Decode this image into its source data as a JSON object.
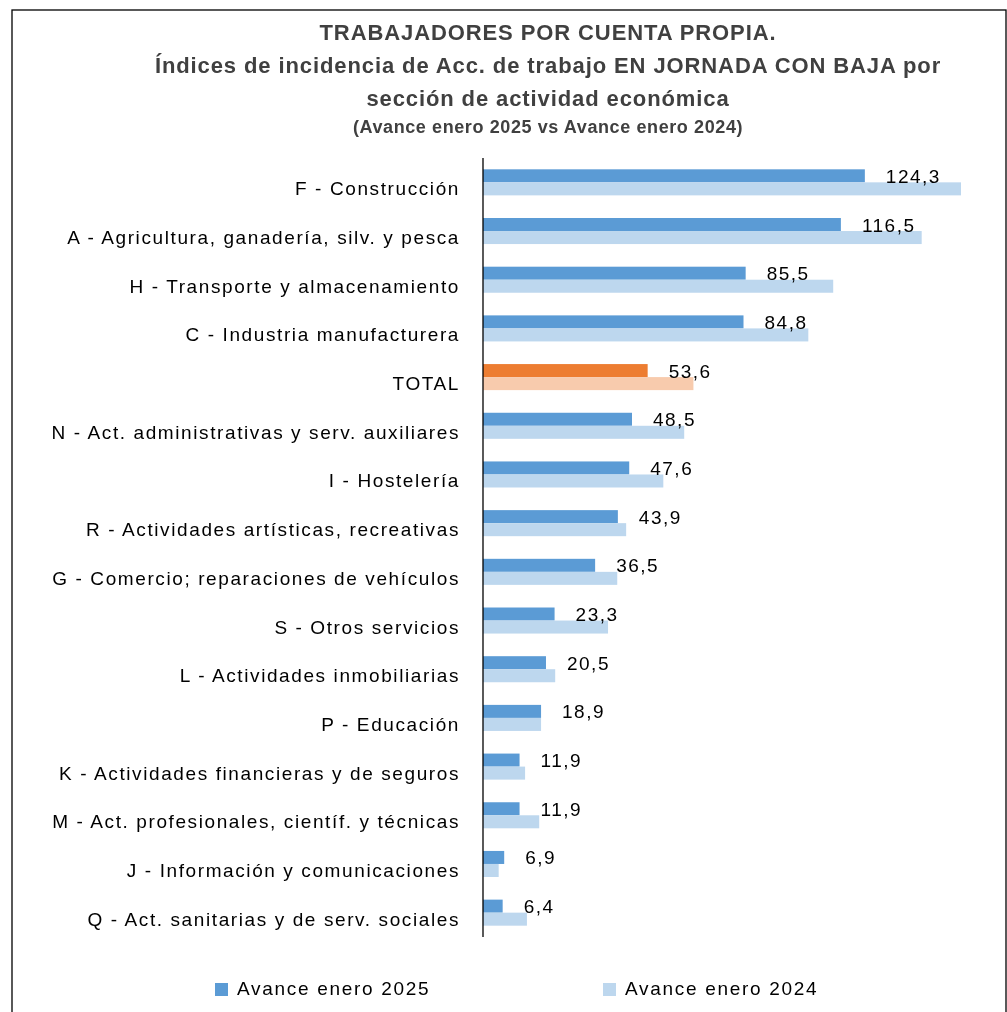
{
  "chart_data": {
    "type": "bar",
    "orientation": "horizontal",
    "title": "TRABAJADORES POR CUENTA PROPIA.\nÍndices de incidencia de Acc. de trabajo EN JORNADA CON BAJA por\nsección de actividad económica",
    "subtitle": "(Avance enero 2025 vs Avance enero 2024)",
    "categories": [
      "F - Construcción",
      "A - Agricultura, ganadería, silv. y pesca",
      "H - Transporte y almacenamiento",
      "C - Industria manufacturera",
      "TOTAL",
      "N - Act. administrativas y serv. auxiliares",
      "I - Hostelería",
      "R - Actividades artísticas, recreativas",
      "G - Comercio; reparaciones de vehículos",
      "S - Otros servicios",
      "L - Actividades inmobiliarias",
      "P - Educación",
      "K - Actividades financieras y de seguros",
      "M - Act. profesionales, científ. y técnicas",
      "J - Información y comunicaciones",
      "Q - Act. sanitarias y de serv. sociales"
    ],
    "series": [
      {
        "name": "Avance enero 2025",
        "color": "#5b9bd5",
        "colors": [
          "#5b9bd5",
          "#5b9bd5",
          "#5b9bd5",
          "#5b9bd5",
          "#ed7d31",
          "#5b9bd5",
          "#5b9bd5",
          "#5b9bd5",
          "#5b9bd5",
          "#5b9bd5",
          "#5b9bd5",
          "#5b9bd5",
          "#5b9bd5",
          "#5b9bd5",
          "#5b9bd5",
          "#5b9bd5"
        ],
        "values": [
          124.3,
          116.5,
          85.5,
          84.8,
          53.6,
          48.5,
          47.6,
          43.9,
          36.5,
          23.3,
          20.5,
          18.9,
          11.9,
          11.9,
          6.9,
          6.4
        ],
        "value_labels": [
          "124,3",
          "116,5",
          "85,5",
          "84,8",
          "53,6",
          "48,5",
          "47,6",
          "43,9",
          "36,5",
          "23,3",
          "20,5",
          "18,9",
          "11,9",
          "11,9",
          "6,9",
          "6,4"
        ]
      },
      {
        "name": "Avance enero 2024",
        "color": "#bdd7ee",
        "colors": [
          "#bdd7ee",
          "#bdd7ee",
          "#bdd7ee",
          "#bdd7ee",
          "#f8cbad",
          "#bdd7ee",
          "#bdd7ee",
          "#bdd7ee",
          "#bdd7ee",
          "#bdd7ee",
          "#bdd7ee",
          "#bdd7ee",
          "#bdd7ee",
          "#bdd7ee",
          "#bdd7ee",
          "#bdd7ee"
        ],
        "values": [
          155.6,
          142.8,
          114.0,
          105.9,
          68.5,
          65.5,
          58.7,
          46.6,
          43.7,
          40.7,
          23.5,
          18.9,
          13.7,
          18.3,
          5.1,
          14.3
        ]
      }
    ],
    "tick_labels": "y",
    "legend": "bottom"
  }
}
